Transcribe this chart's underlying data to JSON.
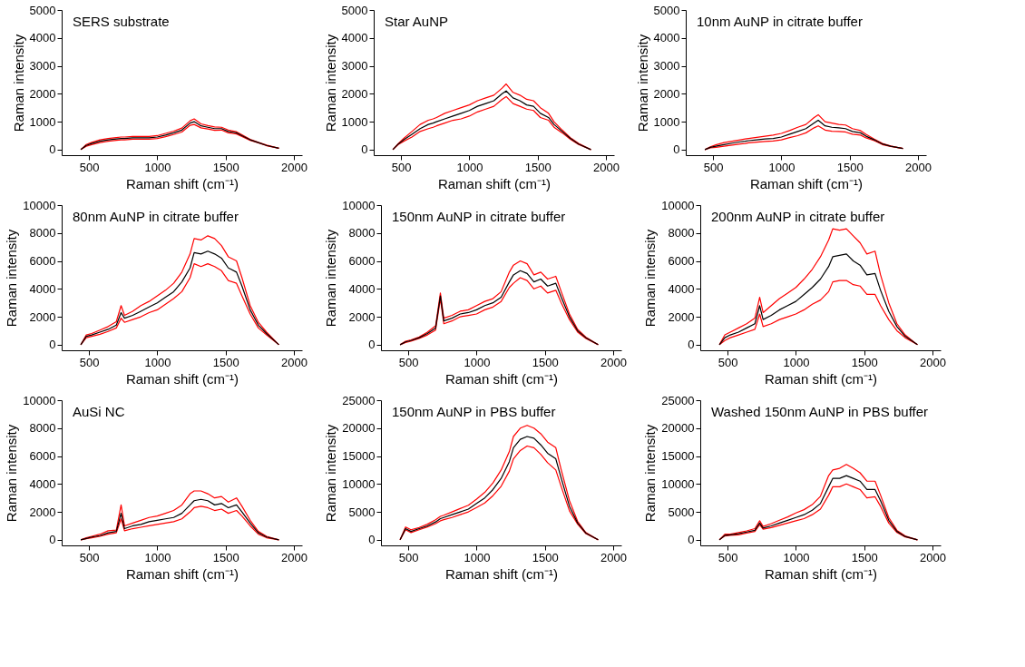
{
  "chart_data": [
    {
      "type": "line",
      "title": "SERS substrate",
      "xlabel": "Raman shift (cm⁻¹)",
      "ylabel": "Raman intensity",
      "xlim": [
        300,
        2060
      ],
      "xticks": [
        500,
        1000,
        1500,
        2000
      ],
      "ylim": [
        -200,
        5000
      ],
      "yticks": [
        0,
        1000,
        2000,
        3000,
        4000,
        5000
      ],
      "grid": false,
      "marker": "none",
      "line_style": "solid",
      "x": [
        440,
        480,
        520,
        580,
        640,
        700,
        735,
        760,
        820,
        880,
        940,
        1000,
        1060,
        1120,
        1180,
        1240,
        1270,
        1320,
        1370,
        1420,
        1470,
        1520,
        1580,
        1620,
        1680,
        1740,
        1800,
        1890
      ],
      "series": [
        {
          "color": "#ff0000",
          "values": [
            0,
            180,
            260,
            350,
            400,
            430,
            450,
            450,
            470,
            470,
            470,
            500,
            580,
            660,
            770,
            1030,
            1100,
            920,
            860,
            810,
            800,
            700,
            640,
            530,
            370,
            260,
            160,
            50
          ]
        },
        {
          "color": "#ff0000",
          "values": [
            0,
            120,
            180,
            250,
            300,
            330,
            350,
            350,
            370,
            370,
            370,
            400,
            460,
            540,
            630,
            870,
            900,
            780,
            740,
            690,
            700,
            600,
            560,
            470,
            330,
            240,
            140,
            50
          ]
        },
        {
          "color": "#000000",
          "values": [
            0,
            150,
            220,
            300,
            350,
            380,
            400,
            400,
            420,
            420,
            420,
            450,
            520,
            600,
            700,
            950,
            1000,
            850,
            800,
            750,
            750,
            650,
            600,
            500,
            350,
            250,
            150,
            50
          ]
        }
      ]
    },
    {
      "type": "line",
      "title": "Star AuNP",
      "xlabel": "Raman shift (cm⁻¹)",
      "ylabel": "Raman intensity",
      "xlim": [
        300,
        2060
      ],
      "xticks": [
        500,
        1000,
        1500,
        2000
      ],
      "ylim": [
        -200,
        5000
      ],
      "yticks": [
        0,
        1000,
        2000,
        3000,
        4000,
        5000
      ],
      "grid": false,
      "marker": "none",
      "line_style": "solid",
      "x": [
        440,
        480,
        520,
        580,
        640,
        700,
        735,
        760,
        820,
        880,
        940,
        1000,
        1060,
        1120,
        1180,
        1240,
        1270,
        1320,
        1370,
        1420,
        1470,
        1520,
        1580,
        1620,
        1680,
        1740,
        1800,
        1890
      ],
      "series": [
        {
          "color": "#ff0000",
          "values": [
            0,
            220,
            400,
            650,
            900,
            1050,
            1100,
            1150,
            1300,
            1400,
            1500,
            1600,
            1750,
            1850,
            1950,
            2200,
            2350,
            2050,
            1950,
            1800,
            1750,
            1500,
            1300,
            1000,
            700,
            430,
            220,
            0
          ]
        },
        {
          "color": "#ff0000",
          "values": [
            0,
            180,
            300,
            450,
            650,
            750,
            800,
            850,
            950,
            1050,
            1100,
            1200,
            1350,
            1450,
            1550,
            1800,
            1900,
            1650,
            1550,
            1450,
            1400,
            1150,
            1050,
            800,
            600,
            370,
            180,
            0
          ]
        },
        {
          "color": "#000000",
          "values": [
            0,
            200,
            350,
            550,
            750,
            900,
            950,
            1000,
            1100,
            1200,
            1300,
            1400,
            1550,
            1650,
            1750,
            2000,
            2100,
            1850,
            1750,
            1600,
            1550,
            1300,
            1150,
            900,
            650,
            400,
            200,
            0
          ]
        }
      ]
    },
    {
      "type": "line",
      "title": "10nm AuNP in citrate buffer",
      "xlabel": "Raman shift (cm⁻¹)",
      "ylabel": "Raman intensity",
      "xlim": [
        300,
        2060
      ],
      "xticks": [
        500,
        1000,
        1500,
        2000
      ],
      "ylim": [
        -200,
        5000
      ],
      "yticks": [
        0,
        1000,
        2000,
        3000,
        4000,
        5000
      ],
      "grid": false,
      "marker": "none",
      "line_style": "solid",
      "x": [
        440,
        480,
        520,
        580,
        640,
        700,
        735,
        760,
        820,
        880,
        940,
        1000,
        1060,
        1120,
        1180,
        1240,
        1270,
        1320,
        1370,
        1420,
        1470,
        1520,
        1580,
        1620,
        1680,
        1740,
        1800,
        1890
      ],
      "series": [
        {
          "color": "#ff0000",
          "values": [
            0,
            100,
            170,
            250,
            300,
            350,
            380,
            400,
            440,
            480,
            520,
            580,
            680,
            800,
            900,
            1150,
            1250,
            1000,
            950,
            900,
            880,
            750,
            680,
            550,
            380,
            220,
            130,
            40
          ]
        },
        {
          "color": "#ff0000",
          "values": [
            0,
            60,
            80,
            120,
            160,
            200,
            220,
            240,
            270,
            290,
            310,
            350,
            430,
            500,
            600,
            780,
            850,
            700,
            660,
            650,
            630,
            550,
            520,
            420,
            320,
            180,
            110,
            40
          ]
        },
        {
          "color": "#000000",
          "values": [
            0,
            80,
            120,
            180,
            230,
            280,
            300,
            320,
            350,
            380,
            400,
            450,
            550,
            650,
            750,
            950,
            1050,
            850,
            800,
            780,
            750,
            650,
            600,
            480,
            350,
            200,
            120,
            40
          ]
        }
      ]
    },
    {
      "type": "line",
      "title": "80nm AuNP in citrate buffer",
      "xlabel": "Raman shift (cm⁻¹)",
      "ylabel": "Raman intensity",
      "xlim": [
        300,
        2060
      ],
      "xticks": [
        500,
        1000,
        1500,
        2000
      ],
      "ylim": [
        -400,
        10000
      ],
      "yticks": [
        0,
        2000,
        4000,
        6000,
        8000,
        10000
      ],
      "grid": false,
      "marker": "none",
      "line_style": "solid",
      "x": [
        440,
        480,
        520,
        580,
        640,
        700,
        735,
        760,
        820,
        880,
        940,
        1000,
        1060,
        1120,
        1180,
        1240,
        1270,
        1320,
        1370,
        1420,
        1470,
        1520,
        1580,
        1620,
        1680,
        1740,
        1800,
        1890
      ],
      "series": [
        {
          "color": "#ff0000",
          "values": [
            0,
            700,
            800,
            1050,
            1300,
            1650,
            2800,
            2100,
            2400,
            2800,
            3100,
            3500,
            3900,
            4400,
            5200,
            6500,
            7600,
            7500,
            7800,
            7600,
            7100,
            6300,
            6000,
            4800,
            2800,
            1600,
            900,
            0
          ]
        },
        {
          "color": "#ff0000",
          "values": [
            0,
            500,
            600,
            750,
            950,
            1200,
            1900,
            1600,
            1800,
            2000,
            2300,
            2500,
            2900,
            3300,
            3800,
            4800,
            5800,
            5600,
            5800,
            5600,
            5300,
            4600,
            4400,
            3500,
            2200,
            1200,
            700,
            0
          ]
        },
        {
          "color": "#000000",
          "values": [
            0,
            600,
            700,
            900,
            1100,
            1400,
            2300,
            1900,
            2100,
            2400,
            2700,
            3000,
            3400,
            3800,
            4500,
            5500,
            6600,
            6500,
            6700,
            6500,
            6200,
            5500,
            5200,
            4200,
            2500,
            1400,
            800,
            0
          ]
        }
      ]
    },
    {
      "type": "line",
      "title": "150nm AuNP in citrate buffer",
      "xlabel": "Raman shift (cm⁻¹)",
      "ylabel": "Raman intensity",
      "xlim": [
        300,
        2060
      ],
      "xticks": [
        500,
        1000,
        1500,
        2000
      ],
      "ylim": [
        -400,
        10000
      ],
      "yticks": [
        0,
        2000,
        4000,
        6000,
        8000,
        10000
      ],
      "grid": false,
      "marker": "none",
      "line_style": "solid",
      "x": [
        440,
        480,
        520,
        580,
        640,
        700,
        735,
        760,
        820,
        880,
        940,
        1000,
        1060,
        1120,
        1180,
        1240,
        1270,
        1320,
        1370,
        1420,
        1470,
        1520,
        1580,
        1620,
        1680,
        1740,
        1800,
        1890
      ],
      "series": [
        {
          "color": "#ff0000",
          "values": [
            0,
            250,
            350,
            550,
            900,
            1350,
            3700,
            1900,
            2100,
            2400,
            2500,
            2800,
            3100,
            3300,
            3800,
            5200,
            5700,
            6000,
            5800,
            5000,
            5200,
            4700,
            4900,
            3800,
            2200,
            1100,
            550,
            0
          ]
        },
        {
          "color": "#ff0000",
          "values": [
            0,
            150,
            250,
            450,
            700,
            1050,
            3300,
            1500,
            1700,
            2000,
            2100,
            2200,
            2500,
            2700,
            3100,
            4100,
            4400,
            4800,
            4600,
            4000,
            4200,
            3700,
            3900,
            3000,
            1800,
            900,
            450,
            0
          ]
        },
        {
          "color": "#000000",
          "values": [
            0,
            200,
            300,
            500,
            800,
            1200,
            3500,
            1700,
            1900,
            2200,
            2300,
            2500,
            2800,
            3000,
            3400,
            4500,
            5000,
            5300,
            5100,
            4500,
            4700,
            4200,
            4400,
            3400,
            2000,
            1000,
            500,
            0
          ]
        }
      ]
    },
    {
      "type": "line",
      "title": "200nm AuNP in citrate buffer",
      "xlabel": "Raman shift (cm⁻¹)",
      "ylabel": "Raman intensity",
      "xlim": [
        300,
        2060
      ],
      "xticks": [
        500,
        1000,
        1500,
        2000
      ],
      "ylim": [
        -400,
        10000
      ],
      "yticks": [
        0,
        2000,
        4000,
        6000,
        8000,
        10000
      ],
      "grid": false,
      "marker": "none",
      "line_style": "solid",
      "x": [
        440,
        480,
        520,
        580,
        640,
        700,
        735,
        760,
        820,
        880,
        940,
        1000,
        1060,
        1120,
        1180,
        1240,
        1270,
        1320,
        1370,
        1420,
        1470,
        1520,
        1580,
        1620,
        1680,
        1740,
        1800,
        1890
      ],
      "series": [
        {
          "color": "#ff0000",
          "values": [
            0,
            700,
            900,
            1200,
            1500,
            1900,
            3400,
            2300,
            2800,
            3300,
            3700,
            4100,
            4700,
            5400,
            6300,
            7500,
            8300,
            8200,
            8300,
            7800,
            7300,
            6500,
            6700,
            5000,
            3000,
            1500,
            700,
            0
          ]
        },
        {
          "color": "#ff0000",
          "values": [
            0,
            300,
            500,
            700,
            900,
            1100,
            2200,
            1300,
            1500,
            1800,
            2000,
            2200,
            2500,
            2900,
            3200,
            3800,
            4500,
            4600,
            4600,
            4300,
            4200,
            3600,
            3600,
            2800,
            1800,
            1000,
            500,
            0
          ]
        },
        {
          "color": "#000000",
          "values": [
            0,
            500,
            700,
            900,
            1200,
            1500,
            2800,
            1800,
            2100,
            2500,
            2800,
            3100,
            3600,
            4100,
            4700,
            5600,
            6300,
            6400,
            6500,
            6000,
            5700,
            5000,
            5100,
            3900,
            2400,
            1300,
            600,
            0
          ]
        }
      ]
    },
    {
      "type": "line",
      "title": "AuSi NC",
      "xlabel": "Raman shift (cm⁻¹)",
      "ylabel": "Raman intensity",
      "xlim": [
        300,
        2060
      ],
      "xticks": [
        500,
        1000,
        1500,
        2000
      ],
      "ylim": [
        -400,
        10000
      ],
      "yticks": [
        0,
        2000,
        4000,
        6000,
        8000,
        10000
      ],
      "grid": false,
      "marker": "none",
      "line_style": "solid",
      "x": [
        440,
        480,
        520,
        580,
        640,
        700,
        735,
        760,
        820,
        880,
        940,
        1000,
        1060,
        1120,
        1180,
        1240,
        1270,
        1320,
        1370,
        1420,
        1470,
        1520,
        1580,
        1620,
        1680,
        1740,
        1800,
        1890
      ],
      "series": [
        {
          "color": "#ff0000",
          "values": [
            0,
            150,
            250,
            400,
            650,
            700,
            2500,
            1000,
            1200,
            1400,
            1600,
            1700,
            1900,
            2100,
            2500,
            3300,
            3500,
            3500,
            3300,
            3000,
            3100,
            2700,
            3000,
            2400,
            1400,
            600,
            250,
            0
          ]
        },
        {
          "color": "#ff0000",
          "values": [
            0,
            80,
            150,
            250,
            400,
            500,
            1500,
            650,
            800,
            900,
            1000,
            1100,
            1200,
            1300,
            1500,
            2000,
            2300,
            2400,
            2300,
            2100,
            2200,
            1900,
            2100,
            1700,
            1000,
            400,
            150,
            0
          ]
        },
        {
          "color": "#000000",
          "values": [
            0,
            100,
            200,
            300,
            500,
            600,
            1900,
            800,
            1000,
            1100,
            1300,
            1400,
            1500,
            1600,
            1900,
            2500,
            2800,
            2900,
            2800,
            2500,
            2600,
            2300,
            2500,
            2000,
            1200,
            500,
            200,
            0
          ]
        }
      ]
    },
    {
      "type": "line",
      "title": "150nm AuNP in PBS buffer",
      "xlabel": "Raman shift (cm⁻¹)",
      "ylabel": "Raman intensity",
      "xlim": [
        300,
        2060
      ],
      "xticks": [
        500,
        1000,
        1500,
        2000
      ],
      "ylim": [
        -1000,
        25000
      ],
      "yticks": [
        0,
        5000,
        10000,
        15000,
        20000,
        25000
      ],
      "grid": false,
      "marker": "none",
      "line_style": "solid",
      "x": [
        440,
        480,
        520,
        580,
        640,
        700,
        735,
        760,
        820,
        880,
        940,
        1000,
        1060,
        1120,
        1180,
        1240,
        1270,
        1320,
        1370,
        1420,
        1470,
        1520,
        1580,
        1620,
        1680,
        1740,
        1800,
        1890
      ],
      "series": [
        {
          "color": "#ff0000",
          "values": [
            0,
            2300,
            1800,
            2200,
            2800,
            3600,
            4200,
            4400,
            5000,
            5600,
            6200,
            7300,
            8500,
            10200,
            12500,
            15800,
            18500,
            20000,
            20500,
            20000,
            19000,
            17500,
            16500,
            12500,
            7000,
            3300,
            1300,
            0
          ]
        },
        {
          "color": "#ff0000",
          "values": [
            0,
            1800,
            1300,
            1800,
            2300,
            2900,
            3400,
            3600,
            4000,
            4500,
            5000,
            5800,
            6600,
            7900,
            9600,
            12300,
            14500,
            16000,
            16800,
            16500,
            15300,
            13800,
            12500,
            9500,
            5200,
            2800,
            1100,
            0
          ]
        },
        {
          "color": "#000000",
          "values": [
            0,
            2000,
            1500,
            2000,
            2500,
            3200,
            3800,
            4000,
            4500,
            5000,
            5500,
            6500,
            7500,
            9000,
            11000,
            14000,
            16500,
            18000,
            18500,
            18200,
            17000,
            15500,
            14500,
            11000,
            6000,
            3000,
            1200,
            0
          ]
        }
      ]
    },
    {
      "type": "line",
      "title": "Washed 150nm AuNP in PBS buffer",
      "xlabel": "Raman shift (cm⁻¹)",
      "ylabel": "Raman intensity",
      "xlim": [
        300,
        2060
      ],
      "xticks": [
        500,
        1000,
        1500,
        2000
      ],
      "ylim": [
        -1000,
        25000
      ],
      "yticks": [
        0,
        5000,
        10000,
        15000,
        20000,
        25000
      ],
      "grid": false,
      "marker": "none",
      "line_style": "solid",
      "x": [
        440,
        480,
        520,
        580,
        640,
        700,
        735,
        760,
        820,
        880,
        940,
        1000,
        1060,
        1120,
        1180,
        1240,
        1270,
        1320,
        1370,
        1420,
        1470,
        1520,
        1580,
        1620,
        1680,
        1740,
        1800,
        1890
      ],
      "series": [
        {
          "color": "#ff0000",
          "values": [
            0,
            1000,
            1000,
            1300,
            1600,
            2000,
            3400,
            2400,
            2900,
            3500,
            4100,
            4800,
            5400,
            6300,
            7800,
            11500,
            12500,
            12800,
            13500,
            12800,
            12000,
            10500,
            10500,
            8000,
            4000,
            1700,
            700,
            0
          ]
        },
        {
          "color": "#ff0000",
          "values": [
            0,
            700,
            800,
            900,
            1200,
            1500,
            2700,
            1900,
            2200,
            2600,
            3000,
            3400,
            3800,
            4500,
            5500,
            8000,
            9500,
            9500,
            10000,
            9500,
            9000,
            7500,
            7700,
            6000,
            3000,
            1300,
            500,
            0
          ]
        },
        {
          "color": "#000000",
          "values": [
            0,
            800,
            900,
            1100,
            1400,
            1700,
            3000,
            2100,
            2500,
            3000,
            3500,
            4000,
            4500,
            5300,
            6500,
            9500,
            11000,
            11000,
            11500,
            11000,
            10500,
            9000,
            9000,
            7000,
            3500,
            1500,
            600,
            0
          ]
        }
      ]
    }
  ]
}
